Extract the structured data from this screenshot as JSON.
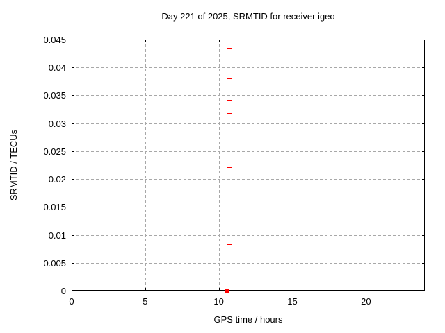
{
  "chart_data": {
    "type": "scatter",
    "title": "Day 221 of 2025, SRMTID for receiver igeo",
    "xlabel": "GPS time / hours",
    "ylabel": "SRMTID / TECUs",
    "xlim": [
      0,
      24
    ],
    "ylim": [
      0,
      0.045
    ],
    "x_ticks": [
      0,
      5,
      10,
      15,
      20
    ],
    "x_tick_labels": [
      "0",
      "5",
      "10",
      "15",
      "20"
    ],
    "y_ticks": [
      0,
      0.005,
      0.01,
      0.015,
      0.02,
      0.025,
      0.03,
      0.035,
      0.04,
      0.045
    ],
    "y_tick_labels": [
      "0",
      "0.005",
      "0.01",
      "0.015",
      "0.02",
      "0.025",
      "0.03",
      "0.035",
      "0.04",
      "0.045"
    ],
    "grid": true,
    "legend": "none",
    "marker_color": "#ff0000",
    "grid_color": "#a8a8a8",
    "axis_color": "#000000",
    "background_color": "#ffffff",
    "points": [
      {
        "x": 10.69,
        "y": 0.0434,
        "marker": "plus"
      },
      {
        "x": 10.69,
        "y": 0.038,
        "marker": "plus"
      },
      {
        "x": 10.69,
        "y": 0.0341,
        "marker": "plus"
      },
      {
        "x": 10.69,
        "y": 0.0324,
        "marker": "plus"
      },
      {
        "x": 10.69,
        "y": 0.0317,
        "marker": "plus"
      },
      {
        "x": 10.69,
        "y": 0.0221,
        "marker": "plus"
      },
      {
        "x": 10.69,
        "y": 0.0083,
        "marker": "plus"
      },
      {
        "x": 10.58,
        "y": 0.0,
        "marker": "square"
      }
    ]
  }
}
